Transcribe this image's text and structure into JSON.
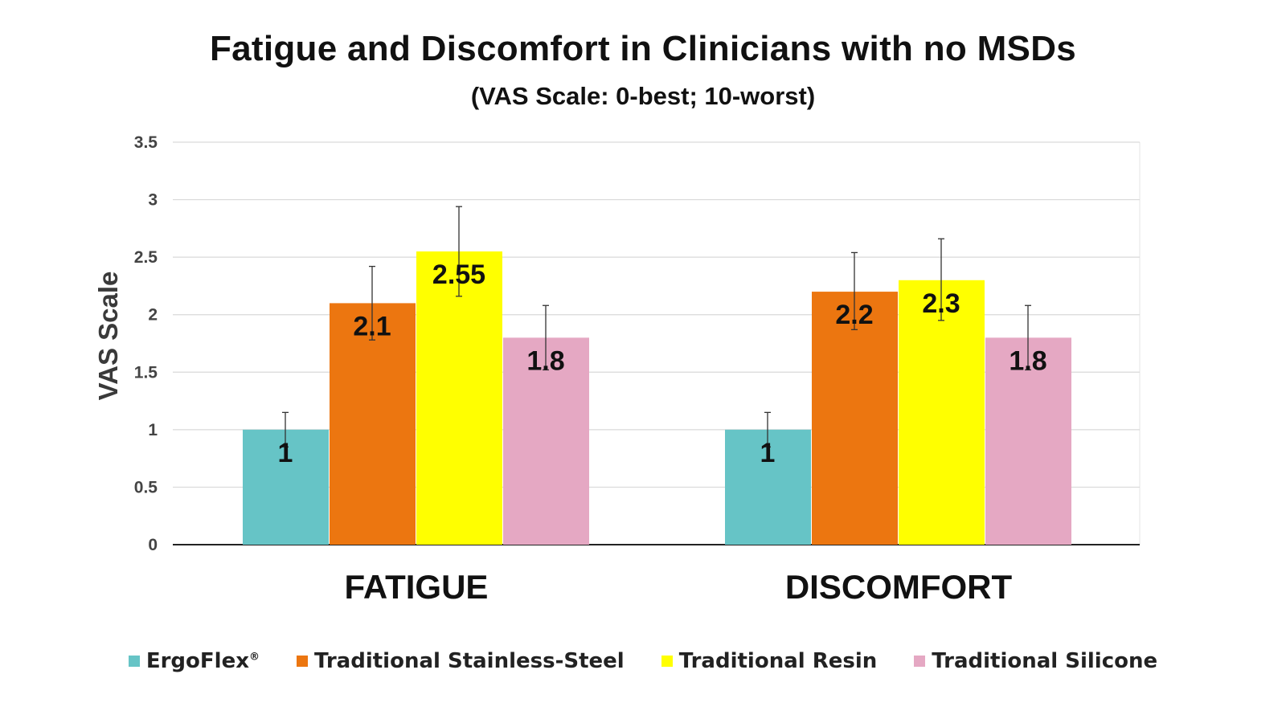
{
  "chart_data": {
    "type": "bar",
    "title": "Fatigue and Discomfort in Clinicians with no MSDs",
    "subtitle": "(VAS Scale: 0-best; 10-worst)",
    "ylabel": "VAS Scale",
    "xlabel": "",
    "ylim": [
      0,
      3.5
    ],
    "yticks": [
      "0",
      "0.5",
      "1",
      "1.5",
      "2",
      "2.5",
      "3",
      "3.5"
    ],
    "grid": true,
    "legend_position": "bottom",
    "categories": [
      "FATIGUE",
      "DISCOMFORT"
    ],
    "series": [
      {
        "name": "ErgoFlex",
        "name_suffix": "®",
        "color": "#66C4C6",
        "values": [
          1,
          1
        ],
        "labels": [
          "1",
          "1"
        ],
        "error_high": [
          1.15,
          1.15
        ],
        "error_low": [
          0.85,
          0.85
        ]
      },
      {
        "name": "Traditional Stainless-Steel",
        "color": "#EC7610",
        "values": [
          2.1,
          2.2
        ],
        "labels": [
          "2.1",
          "2.2"
        ],
        "error_high": [
          2.42,
          2.54
        ],
        "error_low": [
          1.78,
          1.87
        ]
      },
      {
        "name": "Traditional Resin",
        "color": "#FFFF00",
        "values": [
          2.55,
          2.3
        ],
        "labels": [
          "2.55",
          "2.3"
        ],
        "error_high": [
          2.94,
          2.66
        ],
        "error_low": [
          2.16,
          1.95
        ]
      },
      {
        "name": "Traditional Silicone",
        "color": "#E5A8C3",
        "values": [
          1.8,
          1.8
        ],
        "labels": [
          "1.8",
          "1.8"
        ],
        "error_high": [
          2.08,
          2.08
        ],
        "error_low": [
          1.52,
          1.52
        ]
      }
    ]
  }
}
